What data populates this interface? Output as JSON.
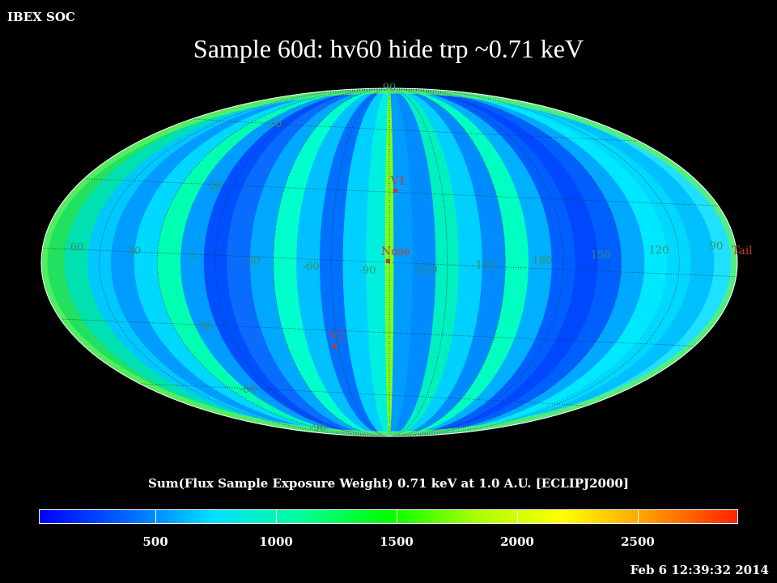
{
  "header": {
    "soc_label": "IBEX SOC",
    "title": "Sample 60d: hv60 hide trp ~0.71 keV"
  },
  "map": {
    "projection": "mollweide",
    "grid_color": "#3a8c66",
    "marker_color": "#c43a2a",
    "longitude_labels": [
      "60",
      "30",
      "0",
      "-30",
      "-60",
      "-90",
      "-120",
      "-150",
      "180",
      "150",
      "120",
      "90"
    ],
    "latitude_labels": [
      "90",
      "60",
      "30",
      "-30",
      "-60",
      "-90"
    ],
    "markers": [
      {
        "name": "V1"
      },
      {
        "name": "Nose"
      },
      {
        "name": "V2"
      },
      {
        "name": "Tail"
      }
    ]
  },
  "colorbar": {
    "label": "Sum(Flux Sample Exposure Weight)  0.71 keV at 1.0 A.U. [ECLIPJ2000]",
    "min": 0,
    "max": 2900,
    "ticks": [
      "500",
      "1000",
      "1500",
      "2000",
      "2500"
    ],
    "colors": [
      "#0000ff",
      "#0066ff",
      "#00e0ff",
      "#00ff99",
      "#00ff00",
      "#aaff00",
      "#ffff00",
      "#ff9900",
      "#ff2200"
    ]
  },
  "footer": {
    "timestamp": "Feb  6 12:39:32 2014"
  }
}
